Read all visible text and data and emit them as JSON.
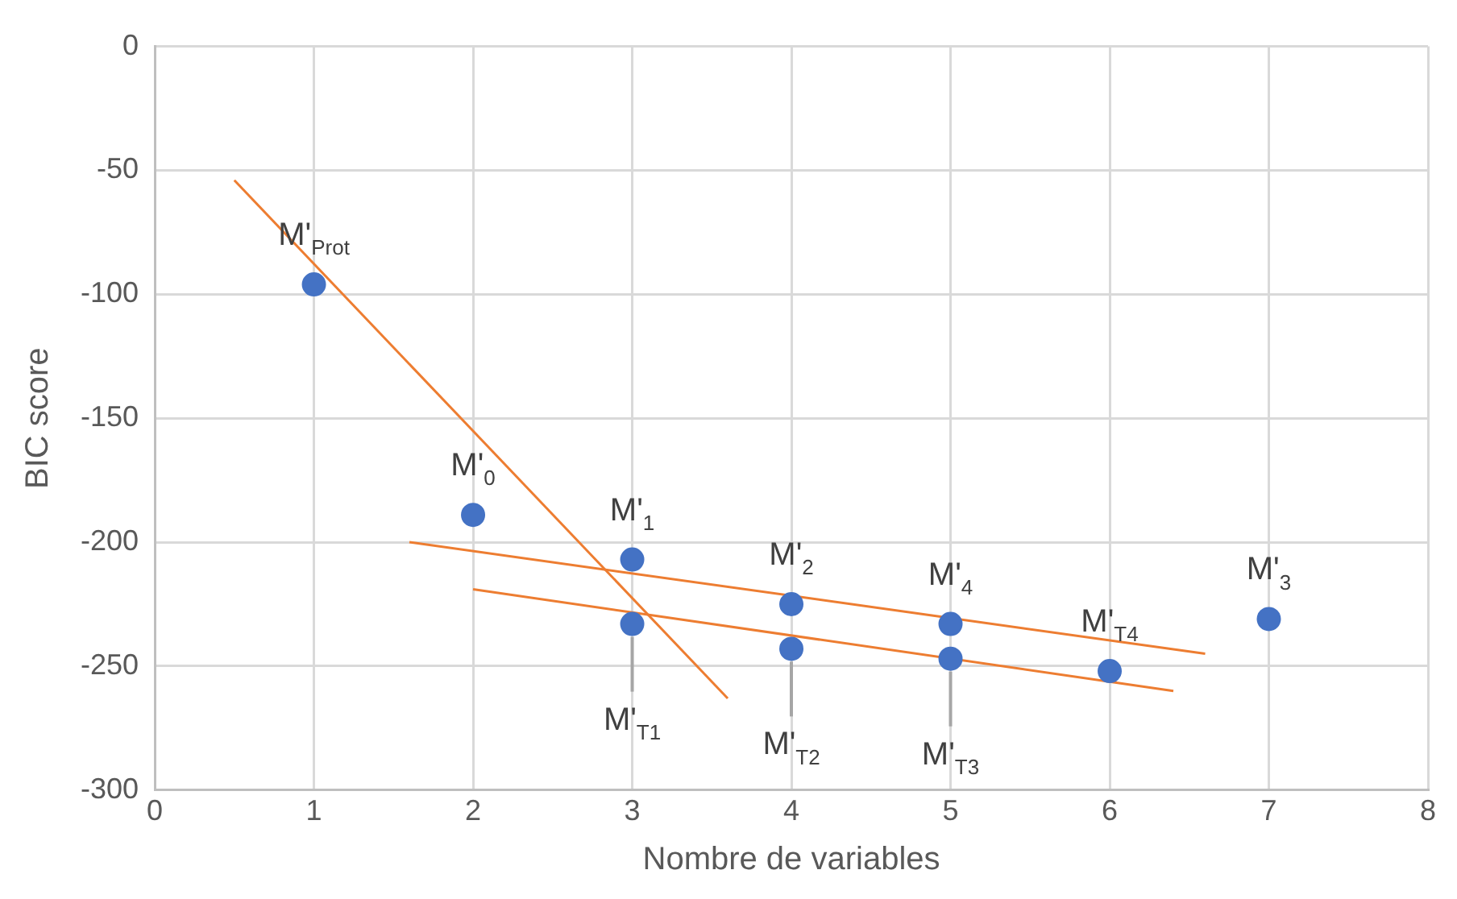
{
  "chart_data": {
    "type": "scatter",
    "xlabel": "Nombre de variables",
    "ylabel": "BIC score",
    "xlim": [
      0,
      8
    ],
    "xticks": [
      0,
      1,
      2,
      3,
      4,
      5,
      6,
      7,
      8
    ],
    "ylim": [
      -300,
      0
    ],
    "yticks": [
      -300,
      -250,
      -200,
      -150,
      -100,
      -50,
      0
    ],
    "grid": true,
    "marker": "circle",
    "series": [
      {
        "color": "#4472c4",
        "x": [
          1,
          2,
          3,
          3,
          4,
          4,
          5,
          5,
          6,
          7
        ],
        "values": [
          -96,
          -189,
          -207,
          -233,
          -225,
          -243,
          -233,
          -247,
          -252,
          -231
        ]
      },
      {
        "type": "line",
        "marker": "none",
        "color": "#ed7d31",
        "x": [
          0.5,
          3.6
        ],
        "values": [
          -54,
          -263
        ]
      },
      {
        "type": "line",
        "marker": "none",
        "color": "#ed7d31",
        "x": [
          1.6,
          6.6
        ],
        "values": [
          -200,
          -245
        ]
      },
      {
        "type": "line",
        "marker": "none",
        "color": "#ed7d31",
        "x": [
          2,
          6.4
        ],
        "values": [
          -219,
          -260
        ]
      }
    ],
    "annotations": [
      {
        "text": "M'$_{Prot}$",
        "x": 1,
        "y": -96
      },
      {
        "text": "M'$_{0}$",
        "x": 2,
        "y": -189
      },
      {
        "text": "M'$_{1}$",
        "x": 3,
        "y": -207
      },
      {
        "text": "M'$_{2}$",
        "x": 4,
        "y": -225
      },
      {
        "text": "M'$_{4}$",
        "x": 5,
        "y": -233
      },
      {
        "text": "M'$_{T4}$",
        "x": 6,
        "y": -252
      },
      {
        "text": "M'$_{3}$",
        "x": 7,
        "y": -231
      },
      {
        "text": "M'$_{T1}$",
        "x": 3,
        "y": -233
      },
      {
        "text": "M'$_{T2}$",
        "x": 4,
        "y": -243
      },
      {
        "text": "M'$_{T3}$",
        "x": 5,
        "y": -247
      }
    ]
  }
}
